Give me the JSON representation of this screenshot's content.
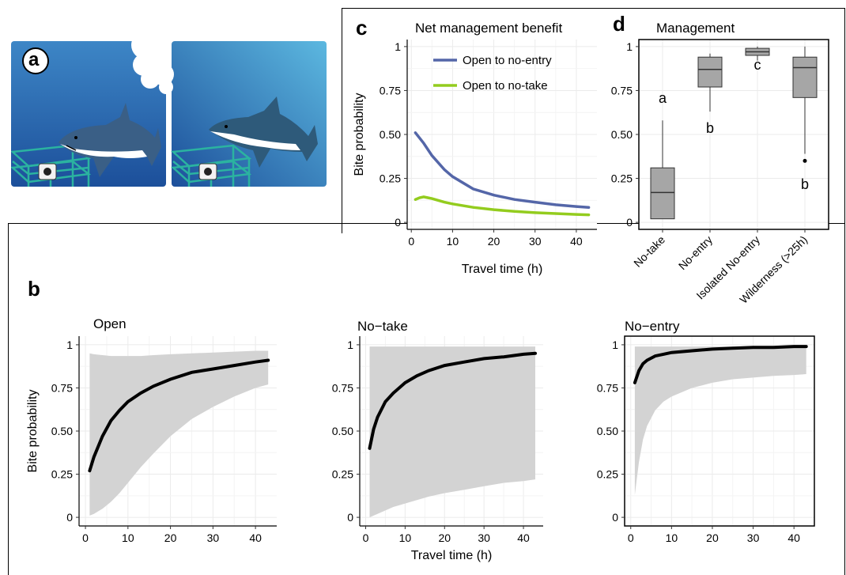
{
  "panel_labels": {
    "a": "a",
    "b": "b",
    "c": "c",
    "d": "d"
  },
  "colors": {
    "water_top": "#3d86c6",
    "water_bottom": "#1c4f9a",
    "water2_top": "#5cb8e0",
    "no_entry_line": "#5466a8",
    "no_take_line": "#93cc1e",
    "band": "#d3d3d3",
    "box_fill": "#a6a6a6"
  },
  "chart_data": [
    {
      "id": "c",
      "type": "line",
      "title": "Net management benefit",
      "xlabel": "Travel time (h)",
      "ylabel": "Bite probability",
      "xlim": [
        -1,
        45
      ],
      "ylim": [
        -0.04,
        1.04
      ],
      "xticks": [
        0,
        10,
        20,
        30,
        40
      ],
      "yticks": [
        0,
        0.25,
        0.5,
        0.75,
        1
      ],
      "ytick_labels": [
        "0",
        "0.25",
        "0.50",
        "0.75",
        "1"
      ],
      "legend_position": "top-right",
      "grid": true,
      "series": [
        {
          "name": "Open to no-entry",
          "x": [
            1,
            3,
            5,
            8,
            10,
            15,
            20,
            25,
            30,
            35,
            40,
            43
          ],
          "y": [
            0.51,
            0.45,
            0.38,
            0.3,
            0.26,
            0.19,
            0.155,
            0.13,
            0.115,
            0.1,
            0.09,
            0.085
          ]
        },
        {
          "name": "Open to no-take",
          "x": [
            1,
            2,
            3,
            4,
            5,
            8,
            10,
            15,
            20,
            25,
            30,
            35,
            40,
            43
          ],
          "y": [
            0.13,
            0.14,
            0.145,
            0.14,
            0.135,
            0.115,
            0.105,
            0.085,
            0.072,
            0.062,
            0.055,
            0.05,
            0.045,
            0.043
          ]
        }
      ]
    },
    {
      "id": "d",
      "type": "box",
      "title": "Management",
      "ylabel": "",
      "ylim": [
        -0.04,
        1.04
      ],
      "yticks": [
        0,
        0.25,
        0.5,
        0.75,
        1
      ],
      "ytick_labels": [
        "0",
        "0.25",
        "0.50",
        "0.75",
        "1"
      ],
      "grid": true,
      "categories": [
        "No-take",
        "No-entry",
        "Isolated No-entry",
        "Wilderness (>25h)"
      ],
      "boxes": [
        {
          "min": 0.02,
          "q1": 0.02,
          "median": 0.17,
          "q3": 0.31,
          "max": 0.58,
          "outliers": [],
          "letter": "a",
          "letter_y": 0.68
        },
        {
          "min": 0.63,
          "q1": 0.77,
          "median": 0.87,
          "q3": 0.94,
          "max": 0.96,
          "outliers": [],
          "letter": "b",
          "letter_y": 0.51
        },
        {
          "min": 0.92,
          "q1": 0.95,
          "median": 0.97,
          "q3": 0.99,
          "max": 1.0,
          "outliers": [],
          "letter": "c",
          "letter_y": 0.87
        },
        {
          "min": 0.39,
          "q1": 0.71,
          "median": 0.88,
          "q3": 0.94,
          "max": 1.0,
          "outliers": [
            0.35
          ],
          "letter": "b",
          "letter_y": 0.19
        }
      ]
    },
    {
      "id": "b1",
      "type": "area",
      "title": "Open",
      "xlabel": "",
      "ylabel": "Bite probability",
      "xlim": [
        -1.5,
        45
      ],
      "ylim": [
        -0.05,
        1.05
      ],
      "xticks": [
        0,
        10,
        20,
        30,
        40
      ],
      "yticks": [
        0,
        0.25,
        0.5,
        0.75,
        1
      ],
      "ytick_labels": [
        "0",
        "0.25",
        "0.50",
        "0.75",
        "1"
      ],
      "grid": true,
      "x": [
        1,
        2,
        4,
        6,
        8,
        10,
        13,
        16,
        20,
        25,
        30,
        35,
        40,
        43
      ],
      "fit": [
        0.27,
        0.35,
        0.47,
        0.56,
        0.62,
        0.67,
        0.72,
        0.76,
        0.8,
        0.84,
        0.86,
        0.88,
        0.9,
        0.91
      ],
      "lower": [
        0.01,
        0.02,
        0.05,
        0.09,
        0.14,
        0.2,
        0.29,
        0.37,
        0.47,
        0.57,
        0.64,
        0.7,
        0.75,
        0.77
      ],
      "upper": [
        0.95,
        0.945,
        0.94,
        0.935,
        0.935,
        0.935,
        0.935,
        0.94,
        0.945,
        0.95,
        0.955,
        0.96,
        0.965,
        0.965
      ]
    },
    {
      "id": "b2",
      "type": "area",
      "title": "No−take",
      "xlabel": "Travel time (h)",
      "ylabel": "",
      "xlim": [
        -1.5,
        45
      ],
      "ylim": [
        -0.05,
        1.05
      ],
      "xticks": [
        0,
        10,
        20,
        30,
        40
      ],
      "yticks": [
        0,
        0.25,
        0.5,
        0.75,
        1
      ],
      "ytick_labels": [
        "0",
        "0.25",
        "0.50",
        "0.75",
        "1"
      ],
      "grid": true,
      "x": [
        1,
        2,
        3,
        5,
        7,
        10,
        13,
        16,
        20,
        25,
        30,
        35,
        40,
        43
      ],
      "fit": [
        0.4,
        0.51,
        0.58,
        0.67,
        0.72,
        0.78,
        0.82,
        0.85,
        0.88,
        0.9,
        0.92,
        0.93,
        0.945,
        0.95
      ],
      "lower": [
        0.0,
        0.01,
        0.02,
        0.04,
        0.06,
        0.08,
        0.1,
        0.12,
        0.14,
        0.16,
        0.18,
        0.2,
        0.21,
        0.22
      ],
      "upper": [
        0.99,
        0.99,
        0.99,
        0.99,
        0.99,
        0.99,
        0.99,
        0.99,
        0.99,
        0.99,
        0.99,
        0.99,
        0.99,
        0.99
      ]
    },
    {
      "id": "b3",
      "type": "area",
      "title": "No−entry",
      "xlabel": "",
      "ylabel": "",
      "xlim": [
        -1.5,
        45
      ],
      "ylim": [
        -0.05,
        1.05
      ],
      "xticks": [
        0,
        10,
        20,
        30,
        40
      ],
      "yticks": [
        0,
        0.25,
        0.5,
        0.75,
        1
      ],
      "ytick_labels": [
        "0",
        "0.25",
        "0.50",
        "0.75",
        "1"
      ],
      "grid": true,
      "x": [
        1,
        2,
        3,
        4,
        6,
        8,
        10,
        15,
        20,
        25,
        30,
        35,
        40,
        43
      ],
      "fit": [
        0.78,
        0.85,
        0.89,
        0.91,
        0.935,
        0.945,
        0.955,
        0.965,
        0.975,
        0.98,
        0.985,
        0.985,
        0.99,
        0.99
      ],
      "lower": [
        0.13,
        0.32,
        0.45,
        0.53,
        0.62,
        0.67,
        0.7,
        0.75,
        0.78,
        0.8,
        0.81,
        0.82,
        0.825,
        0.83
      ],
      "upper": [
        0.99,
        0.99,
        0.99,
        0.99,
        0.99,
        0.99,
        0.99,
        0.99,
        0.99,
        0.99,
        0.99,
        0.99,
        0.99,
        0.99
      ]
    }
  ]
}
